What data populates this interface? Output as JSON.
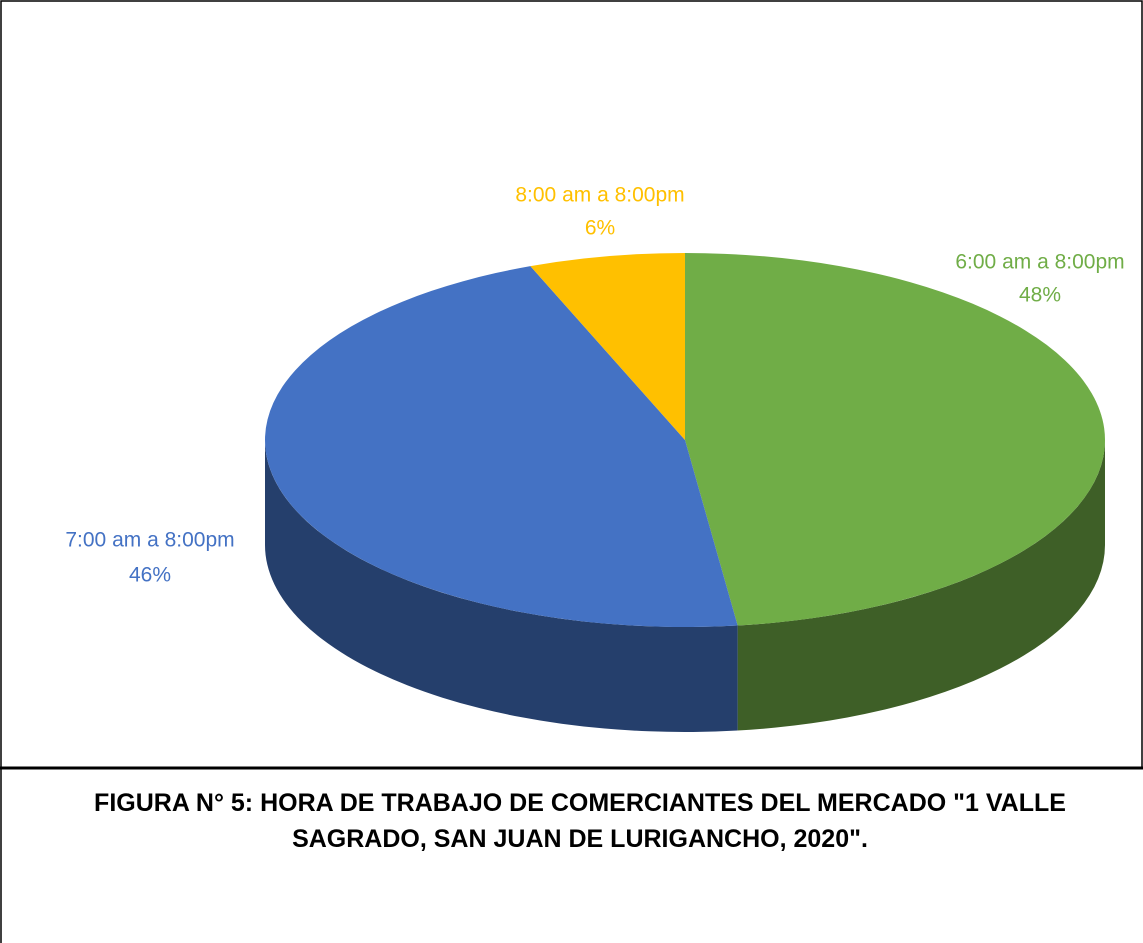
{
  "chart_data": {
    "type": "pie",
    "title": "FIGURA N° 5: HORA DE TRABAJO DE COMERCIANTES DEL MERCADO \"1 VALLE SAGRADO, SAN JUAN DE LURIGANCHO, 2020\".",
    "categories": [
      "6:00 am a 8:00pm",
      "7:00 am a 8:00pm",
      "8:00 am a 8:00pm"
    ],
    "values": [
      48,
      46,
      6
    ],
    "value_labels": [
      "48%",
      "46%",
      "6%"
    ],
    "colors": [
      "#70ad47",
      "#4472c4",
      "#ffc000"
    ]
  }
}
